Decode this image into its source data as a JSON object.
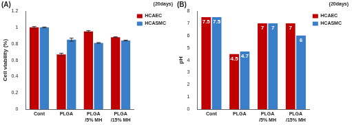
{
  "chart_data": [
    {
      "type": "bar",
      "title": "(A)",
      "annotations": [
        "(20days)"
      ],
      "y_label": "Cell viability (%)",
      "categories": [
        "Cont",
        "PLGA",
        [
          "PLGA",
          "/5% MH"
        ],
        [
          "PLGA",
          "/15% MH"
        ]
      ],
      "series": [
        {
          "name": "HCAEC",
          "color": "#c00000",
          "values": [
            1.0,
            0.67,
            0.95,
            0.88
          ],
          "errors": [
            0.01,
            0.015,
            0.01,
            0.005
          ]
        },
        {
          "name": "HCASMC",
          "color": "#3a7dc9",
          "values": [
            1.0,
            0.85,
            0.81,
            0.84
          ],
          "errors": [
            0.005,
            0.02,
            0.005,
            0.005
          ]
        }
      ],
      "ylim": [
        0,
        1.2
      ],
      "yticks": [
        0,
        0.2,
        0.4,
        0.6,
        0.8,
        1,
        1.2
      ],
      "grid": false,
      "legend": "upper right"
    },
    {
      "type": "bar",
      "title": "(B)",
      "annotations": [
        "(20days)"
      ],
      "y_label": "pH",
      "categories": [
        "Cont",
        "PLGA",
        [
          "PLGA",
          "/5% MH"
        ],
        [
          "PLGA",
          "/15% MH"
        ]
      ],
      "series": [
        {
          "name": "HCAEC",
          "color": "#c00000",
          "values": [
            7.5,
            4.5,
            7,
            7
          ]
        },
        {
          "name": "HCASMC",
          "color": "#3a7dc9",
          "values": [
            7.5,
            4.7,
            7,
            6
          ]
        }
      ],
      "ylim": [
        0,
        8
      ],
      "yticks": [
        0,
        1,
        2,
        3,
        4,
        5,
        6,
        7,
        8
      ],
      "grid": false,
      "legend": "upper right",
      "data_labels": true
    }
  ]
}
